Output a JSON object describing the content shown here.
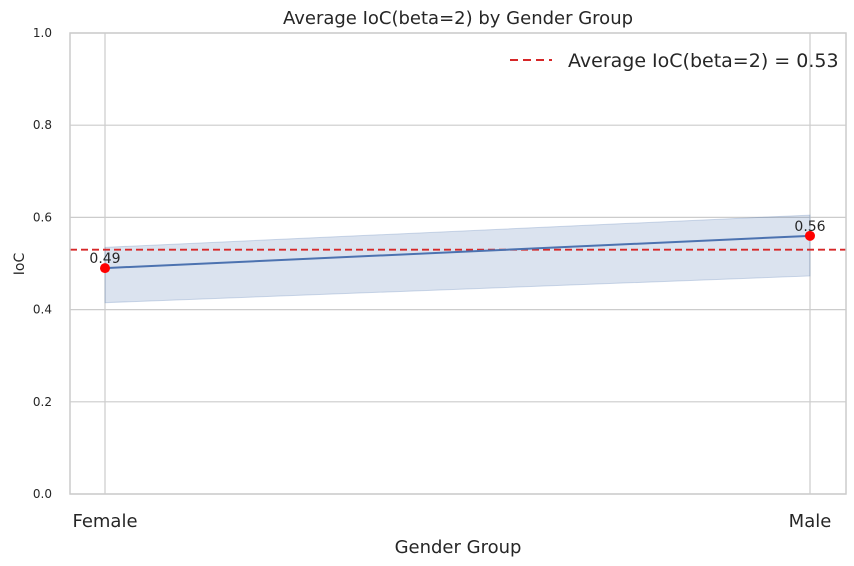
{
  "chart_data": {
    "type": "line",
    "title": "Average IoC(beta=2) by Gender Group",
    "xlabel": "Gender Group",
    "ylabel": "IoC",
    "categories": [
      "Female",
      "Male"
    ],
    "series": [
      {
        "values": [
          0.49,
          0.56
        ],
        "ci_lower": [
          0.415,
          0.473
        ],
        "ci_upper": [
          0.535,
          0.605
        ],
        "color": "#4c72b0",
        "band_color": "#4c72b0",
        "marker_color": "#ff0000",
        "data_labels": [
          "0.49",
          "0.56"
        ]
      }
    ],
    "reference_line": {
      "value": 0.53,
      "label": "Average IoC(beta=2) = 0.53",
      "color": "#d62728",
      "style": "dashed"
    },
    "ylim": [
      0,
      1.0
    ],
    "y_ticks": [
      "0.0",
      "0.2",
      "0.4",
      "0.6",
      "0.8",
      "1.0"
    ],
    "y_tick_values": [
      0,
      0.2,
      0.4,
      0.6,
      0.8,
      1.0
    ],
    "grid": true,
    "legend_position": "top-right"
  }
}
